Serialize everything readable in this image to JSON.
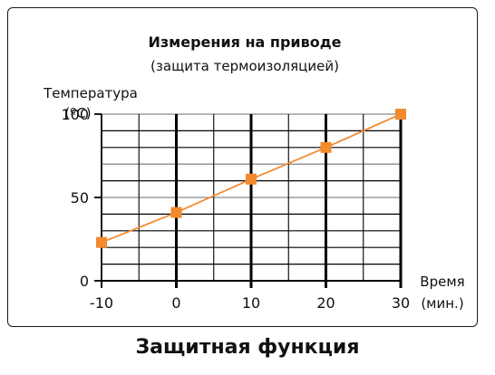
{
  "chart_data": {
    "type": "line",
    "title": "Измерения на приводе",
    "subtitle": "(защита термоизоляцией)",
    "ylabel_line1": "Температура",
    "ylabel_line2": "(ºC)",
    "xlabel_line1": "Время",
    "xlabel_line2": "(мин.)",
    "x_ticks": [
      "-10",
      "0",
      "10",
      "20",
      "30"
    ],
    "y_ticks": [
      "0",
      "50",
      "100"
    ],
    "xlim": [
      -10,
      30
    ],
    "ylim": [
      0,
      100
    ],
    "grid": true,
    "series": [
      {
        "x": [
          -10,
          0,
          10,
          20,
          30
        ],
        "y": [
          23,
          41,
          61,
          80,
          100
        ]
      }
    ],
    "colors": {
      "series": "#f28a2e",
      "grid": "#000000"
    }
  },
  "caption": "Защитная функция"
}
